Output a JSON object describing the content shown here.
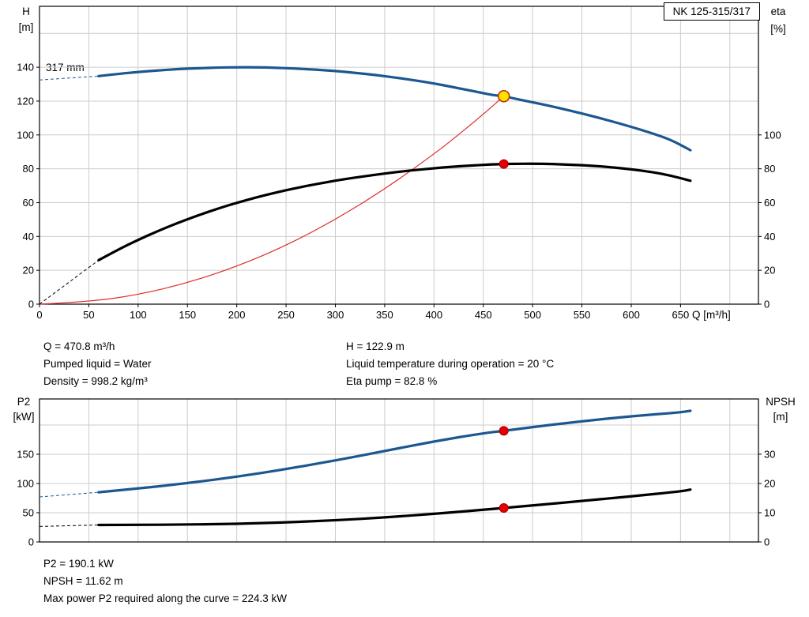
{
  "title_box": "NK 125-315/317",
  "results": {
    "top": {
      "col1": [
        "Q = 470.8 m³/h",
        "Pumped liquid = Water",
        "Density = 998.2 kg/m³"
      ],
      "col2": [
        "H = 122.9 m",
        "Liquid temperature during operation = 20 °C",
        "Eta pump = 82.8 %"
      ]
    },
    "bottom": [
      "P2 = 190.1 kW",
      "NPSH = 11.62 m",
      "Max power P2 required along the curve = 224.3 kW"
    ]
  },
  "colors": {
    "curve_blue": "#1c5790",
    "curve_black": "#000000",
    "curve_red": "#dd2c2c",
    "grid": "#cccccc",
    "axis": "#000000",
    "marker_red": "#e60000",
    "marker_red_ring": "#9a0000",
    "marker_yellow": "#ffe000",
    "marker_yellow_ring": "#c03000"
  },
  "chart_data": [
    {
      "type": "line",
      "name": "hq-chart",
      "impeller_label": "317 mm",
      "x_axis": {
        "label": "Q [m³/h]",
        "range": [
          0,
          729
        ],
        "tick_labels": [
          0,
          50,
          100,
          150,
          200,
          250,
          300,
          350,
          400,
          450,
          500,
          550,
          600,
          650
        ],
        "grid_ticks": [
          50,
          100,
          150,
          200,
          250,
          300,
          350,
          400,
          450,
          500,
          550,
          600,
          650,
          700
        ]
      },
      "left_axis": {
        "label": "H",
        "unit": "[m]",
        "range": [
          0,
          176
        ],
        "tick_labels": [
          0,
          20,
          40,
          60,
          80,
          100,
          120,
          140
        ],
        "grid_ticks": [
          20,
          40,
          60,
          80,
          100,
          120,
          140,
          160
        ]
      },
      "right_axis": {
        "label": "eta",
        "unit": "[%]",
        "range": [
          0,
          176
        ],
        "tick_labels": [
          0,
          20,
          40,
          60,
          80,
          100
        ]
      },
      "series": [
        {
          "name": "system-curve",
          "color": "curve_red",
          "width": 1.2,
          "axis": "left",
          "points": [
            [
              0,
              0
            ],
            [
              50,
              1.4
            ],
            [
              100,
              5.5
            ],
            [
              150,
              12.5
            ],
            [
              200,
              22.2
            ],
            [
              250,
              34.6
            ],
            [
              300,
              49.9
            ],
            [
              350,
              67.9
            ],
            [
              400,
              88.7
            ],
            [
              425,
              100.1
            ],
            [
              450,
              112.2
            ],
            [
              470.8,
              122.9
            ]
          ]
        },
        {
          "name": "head-curve-317mm",
          "color": "curve_blue",
          "width": 3.2,
          "axis": "left",
          "dash_lead": [
            [
              0,
              132.5
            ],
            [
              60,
              134.8
            ]
          ],
          "points": [
            [
              60,
              134.8
            ],
            [
              80,
              136.1
            ],
            [
              100,
              137.2
            ],
            [
              120,
              138.1
            ],
            [
              140,
              138.9
            ],
            [
              160,
              139.4
            ],
            [
              180,
              139.8
            ],
            [
              200,
              140
            ],
            [
              220,
              140
            ],
            [
              240,
              139.7
            ],
            [
              260,
              139.2
            ],
            [
              280,
              138.6
            ],
            [
              300,
              137.8
            ],
            [
              320,
              136.7
            ],
            [
              340,
              135.5
            ],
            [
              360,
              134
            ],
            [
              380,
              132.3
            ],
            [
              400,
              130.4
            ],
            [
              420,
              128.2
            ],
            [
              440,
              125.9
            ],
            [
              460,
              123.5
            ],
            [
              470.8,
              122.9
            ],
            [
              480,
              121.7
            ],
            [
              500,
              119.3
            ],
            [
              520,
              116.8
            ],
            [
              540,
              114.1
            ],
            [
              560,
              111.2
            ],
            [
              580,
              108.1
            ],
            [
              600,
              104.8
            ],
            [
              620,
              101.2
            ],
            [
              640,
              97.2
            ],
            [
              660,
              91
            ]
          ]
        },
        {
          "name": "efficiency-curve",
          "color": "curve_black",
          "width": 3.2,
          "axis": "right",
          "dash_lead": [
            [
              0,
              0
            ],
            [
              60,
              26
            ]
          ],
          "points": [
            [
              60,
              26
            ],
            [
              80,
              32.3
            ],
            [
              100,
              38
            ],
            [
              120,
              43.2
            ],
            [
              140,
              48
            ],
            [
              160,
              52.3
            ],
            [
              180,
              56.3
            ],
            [
              200,
              59.9
            ],
            [
              220,
              63.1
            ],
            [
              240,
              66
            ],
            [
              260,
              68.6
            ],
            [
              280,
              70.9
            ],
            [
              300,
              73
            ],
            [
              320,
              74.8
            ],
            [
              340,
              76.4
            ],
            [
              360,
              77.9
            ],
            [
              380,
              79.2
            ],
            [
              400,
              80.3
            ],
            [
              420,
              81.3
            ],
            [
              440,
              82
            ],
            [
              460,
              82.6
            ],
            [
              470.8,
              82.8
            ],
            [
              480,
              82.9
            ],
            [
              500,
              83
            ],
            [
              520,
              82.8
            ],
            [
              540,
              82.4
            ],
            [
              560,
              81.8
            ],
            [
              580,
              80.9
            ],
            [
              600,
              79.7
            ],
            [
              620,
              78.2
            ],
            [
              640,
              76
            ],
            [
              660,
              72.9
            ]
          ]
        }
      ],
      "markers": [
        {
          "name": "duty-point-head",
          "x": 470.8,
          "y": 122.9,
          "axis": "left",
          "style": "duty-yellow"
        },
        {
          "name": "duty-point-eta",
          "x": 470.8,
          "y": 82.8,
          "axis": "right",
          "style": "dot-red"
        }
      ]
    },
    {
      "type": "line",
      "name": "p2-npsh-chart",
      "x_axis": {
        "label": "",
        "range": [
          0,
          729
        ],
        "tick_labels": [],
        "grid_ticks": [
          50,
          100,
          150,
          200,
          250,
          300,
          350,
          400,
          450,
          500,
          550,
          600,
          650,
          700
        ]
      },
      "left_axis": {
        "label": "P2",
        "unit": "[kW]",
        "range": [
          0,
          244.6
        ],
        "tick_labels": [
          0,
          50,
          100,
          150
        ],
        "grid_ticks": [
          50,
          100,
          150,
          200
        ]
      },
      "right_axis": {
        "label": "NPSH",
        "unit": "[m]",
        "range": [
          0,
          48.9
        ],
        "tick_labels": [
          0,
          10,
          20,
          30
        ]
      },
      "series": [
        {
          "name": "p2-curve",
          "color": "curve_blue",
          "width": 3.2,
          "axis": "left",
          "dash_lead": [
            [
              0,
              77
            ],
            [
              60,
              85
            ]
          ],
          "points": [
            [
              60,
              85
            ],
            [
              100,
              91.5
            ],
            [
              150,
              100.5
            ],
            [
              200,
              111.5
            ],
            [
              250,
              124.5
            ],
            [
              300,
              139.5
            ],
            [
              350,
              155.5
            ],
            [
              400,
              172
            ],
            [
              450,
              186
            ],
            [
              470.8,
              190.1
            ],
            [
              500,
              196.5
            ],
            [
              550,
              206.5
            ],
            [
              600,
              215
            ],
            [
              650,
              221.8
            ],
            [
              660,
              224.3
            ]
          ]
        },
        {
          "name": "npsh-curve",
          "color": "curve_black",
          "width": 3.2,
          "axis": "right",
          "dash_lead": [
            [
              0,
              5.3
            ],
            [
              60,
              5.8
            ]
          ],
          "points": [
            [
              60,
              5.8
            ],
            [
              100,
              5.85
            ],
            [
              150,
              5.95
            ],
            [
              200,
              6.2
            ],
            [
              250,
              6.7
            ],
            [
              300,
              7.4
            ],
            [
              350,
              8.4
            ],
            [
              400,
              9.6
            ],
            [
              450,
              11
            ],
            [
              470.8,
              11.62
            ],
            [
              500,
              12.5
            ],
            [
              550,
              14
            ],
            [
              600,
              15.6
            ],
            [
              650,
              17.3
            ],
            [
              660,
              17.9
            ]
          ]
        }
      ],
      "markers": [
        {
          "name": "duty-point-p2",
          "x": 470.8,
          "y": 190.1,
          "axis": "left",
          "style": "dot-red"
        },
        {
          "name": "duty-point-npsh",
          "x": 470.8,
          "y": 11.62,
          "axis": "right",
          "style": "dot-red"
        }
      ]
    }
  ]
}
